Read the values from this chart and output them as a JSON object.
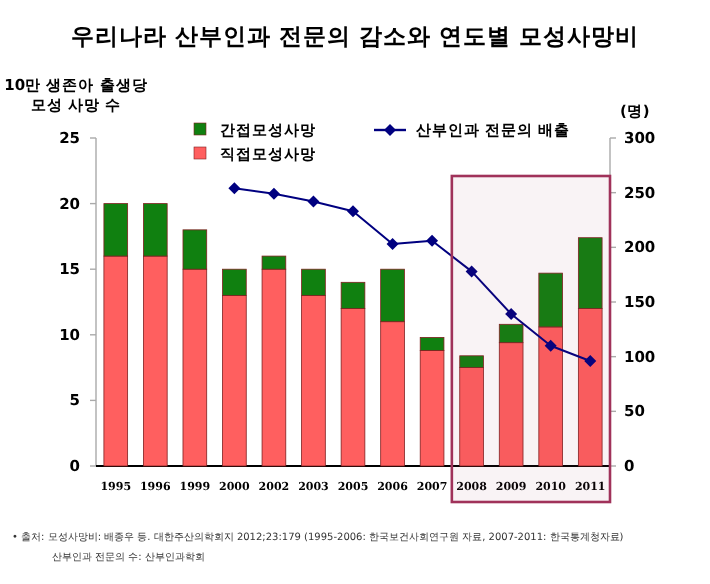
{
  "chart_data": {
    "type": "bar",
    "stacked": true,
    "title": "우리나라 산부인과 전문의 감소와 연도별 모성사망비",
    "ylabel": "10만 생존아 출생당 모성 사망 수",
    "y2label": "(명)",
    "categories": [
      "1995",
      "1996",
      "1999",
      "2000",
      "2002",
      "2003",
      "2005",
      "2006",
      "2007",
      "2008",
      "2009",
      "2010",
      "2011"
    ],
    "series": [
      {
        "name": "직접모성사망",
        "color": "#ff5f5f",
        "values": [
          16,
          16,
          15,
          13,
          15,
          13,
          12,
          11,
          8.8,
          7.5,
          9.4,
          10.6,
          12
        ]
      },
      {
        "name": "간접모성사망",
        "color": "#108010",
        "values": [
          4,
          4,
          3,
          2,
          1,
          2,
          2,
          4,
          1,
          0.9,
          1.4,
          4.1,
          5.4
        ]
      },
      {
        "name": "산부인과 전문의 배출",
        "type": "line",
        "axis": "y2",
        "color": "#000080",
        "marker": "diamond",
        "values": [
          null,
          null,
          null,
          254,
          249,
          242,
          233,
          203,
          206,
          178,
          139,
          110,
          96
        ]
      }
    ],
    "ylim": [
      0,
      25
    ],
    "yticks": [
      0,
      5,
      10,
      15,
      20,
      25
    ],
    "y2lim": [
      0,
      300
    ],
    "y2ticks": [
      0,
      50,
      100,
      150,
      200,
      250,
      300
    ],
    "legend": "top",
    "grid": false,
    "bands": [
      {
        "axis": "x",
        "from": "2008",
        "to": "2011",
        "color": "#a0325a"
      }
    ],
    "annotations": [
      "• 출처: 모성사망비: 배종우 등. 대한주산의학회지 2012;23:179 (1995-2006: 한국보건사회연구원 자료, 2007-2011: 한국통계청자료)",
      "산부인과 전문의 수: 산부인과학회"
    ]
  }
}
